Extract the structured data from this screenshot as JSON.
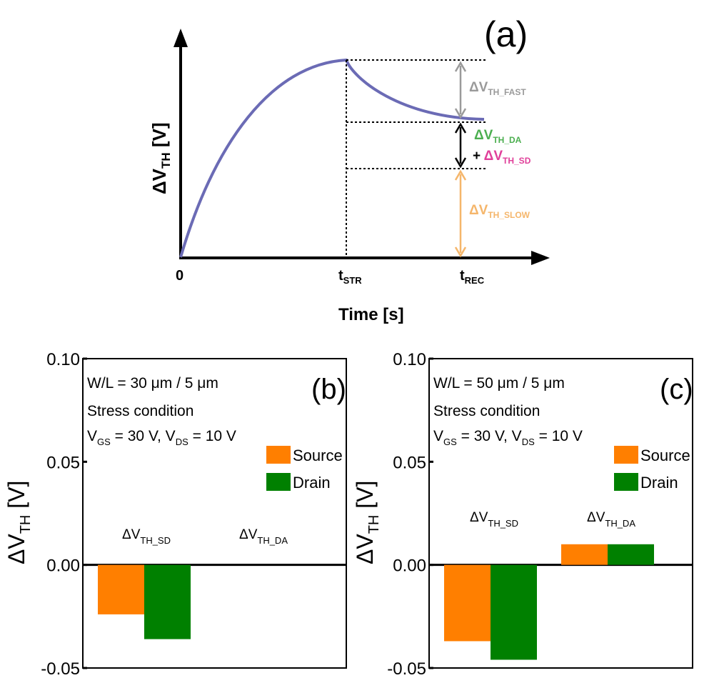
{
  "panel_a": {
    "label": "(a)",
    "ylabel": "ΔV",
    "ylabel_sub": "TH",
    "ylabel_unit": " [V]",
    "xlabel": "Time [s]",
    "ticks": [
      {
        "text": "0",
        "sub": ""
      },
      {
        "text": "t",
        "sub": "STR"
      },
      {
        "text": "t",
        "sub": "REC"
      }
    ],
    "annotations": {
      "fast": {
        "text": "ΔV",
        "sub": "TH_FAST",
        "color": "#9a9a9a"
      },
      "da": {
        "text": "ΔV",
        "sub": "TH_DA",
        "color": "#4caf50"
      },
      "sd": {
        "prefix": "+ ",
        "text": "ΔV",
        "sub": "TH_SD",
        "color": "#e0409a"
      },
      "slow": {
        "text": "ΔV",
        "sub": "TH_SLOW",
        "color": "#f5b66b"
      }
    },
    "curve_color": "#6b6bb5"
  },
  "chart_data": [
    {
      "type": "bar",
      "panel": "(b)",
      "note_lines": [
        "W/L = 30 μm / 5 μm",
        "Stress condition"
      ],
      "condition": {
        "a": "V",
        "a_sub": "GS",
        "b": " = 30 V, V",
        "b_sub": "DS",
        "c": " = 10 V"
      },
      "ylabel": "ΔV",
      "ylabel_sub": "TH",
      "ylabel_unit": " [V]",
      "ylim": [
        -0.05,
        0.1
      ],
      "yticks": [
        "0.10",
        "0.05",
        "0.00",
        "-0.05"
      ],
      "ytick_values": [
        0.1,
        0.05,
        0.0,
        -0.05
      ],
      "categories": [
        {
          "main": "ΔV",
          "sub": "TH_SD"
        },
        {
          "main": "ΔV",
          "sub": "TH_DA"
        }
      ],
      "series": [
        {
          "name": "Source",
          "color": "#ff7f00",
          "values": [
            -0.024,
            0.0
          ]
        },
        {
          "name": "Drain",
          "color": "#008000",
          "values": [
            -0.036,
            0.0
          ]
        }
      ],
      "legend": "right"
    },
    {
      "type": "bar",
      "panel": "(c)",
      "note_lines": [
        "W/L = 50 μm / 5 μm",
        "Stress condition"
      ],
      "condition": {
        "a": "V",
        "a_sub": "GS",
        "b": " = 30 V, V",
        "b_sub": "DS",
        "c": " = 10 V"
      },
      "ylabel": "ΔV",
      "ylabel_sub": "TH",
      "ylabel_unit": " [V]",
      "ylim": [
        -0.05,
        0.1
      ],
      "yticks": [
        "0.10",
        "0.05",
        "0.00",
        "-0.05"
      ],
      "ytick_values": [
        0.1,
        0.05,
        0.0,
        -0.05
      ],
      "categories": [
        {
          "main": "ΔV",
          "sub": "TH_SD"
        },
        {
          "main": "ΔV",
          "sub": "TH_DA"
        }
      ],
      "series": [
        {
          "name": "Source",
          "color": "#ff7f00",
          "values": [
            -0.037,
            0.01
          ]
        },
        {
          "name": "Drain",
          "color": "#008000",
          "values": [
            -0.046,
            0.01
          ]
        }
      ],
      "legend": "right"
    }
  ]
}
